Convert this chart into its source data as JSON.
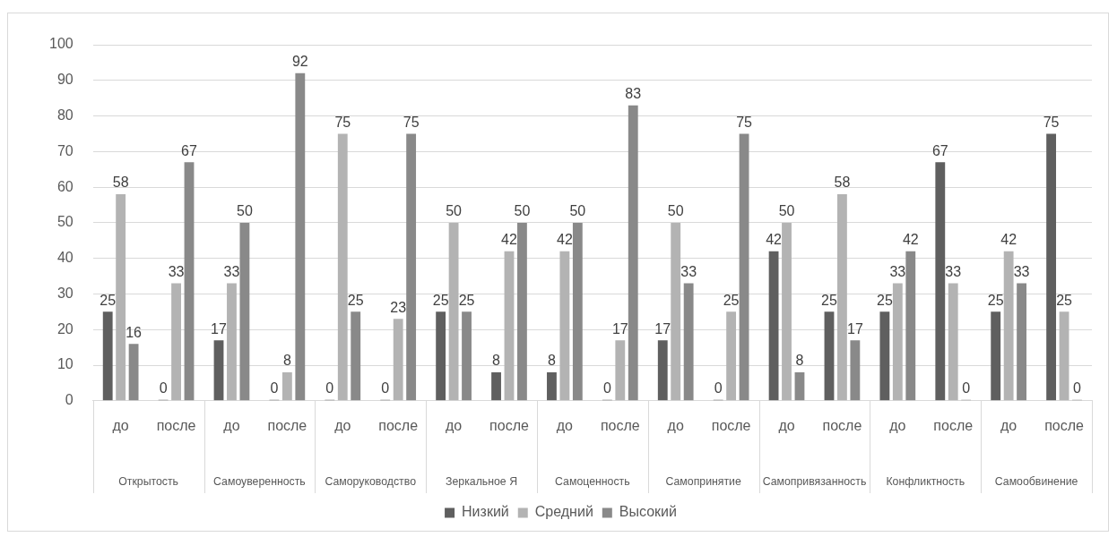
{
  "chart_data": {
    "type": "bar",
    "categories": [
      "до",
      "после",
      "до",
      "после",
      "до",
      "после",
      "до",
      "после",
      "до",
      "после",
      "до",
      "после",
      "до",
      "после",
      "до",
      "после",
      "до",
      "после"
    ],
    "series": [
      {
        "name": "Низкий",
        "color": "#5f5f5f",
        "values": [
          25,
          0,
          17,
          0,
          0,
          0,
          25,
          8,
          8,
          0,
          17,
          0,
          42,
          25,
          25,
          67,
          25,
          75
        ]
      },
      {
        "name": "Средний",
        "color": "#b3b3b3",
        "values": [
          58,
          33,
          33,
          8,
          75,
          23,
          50,
          42,
          42,
          17,
          50,
          25,
          50,
          58,
          33,
          33,
          42,
          25
        ]
      },
      {
        "name": "Высокий",
        "color": "#898989",
        "values": [
          16,
          67,
          50,
          92,
          25,
          75,
          25,
          50,
          50,
          83,
          33,
          75,
          8,
          17,
          42,
          0,
          33,
          0
        ]
      }
    ],
    "annotations": [
      "Открытость",
      "Самоуверенность",
      "Саморуководство",
      "Зеркальное Я",
      "Самоценность",
      "Самопринятие",
      "Самопривязанность",
      "Конфликтность",
      "Самообвинение"
    ],
    "ylim": [
      0,
      100
    ],
    "yticks": [
      0,
      10,
      20,
      30,
      40,
      50,
      60,
      70,
      80,
      90,
      100
    ],
    "grid": "y",
    "legend": "bottom",
    "data_labels": true
  }
}
